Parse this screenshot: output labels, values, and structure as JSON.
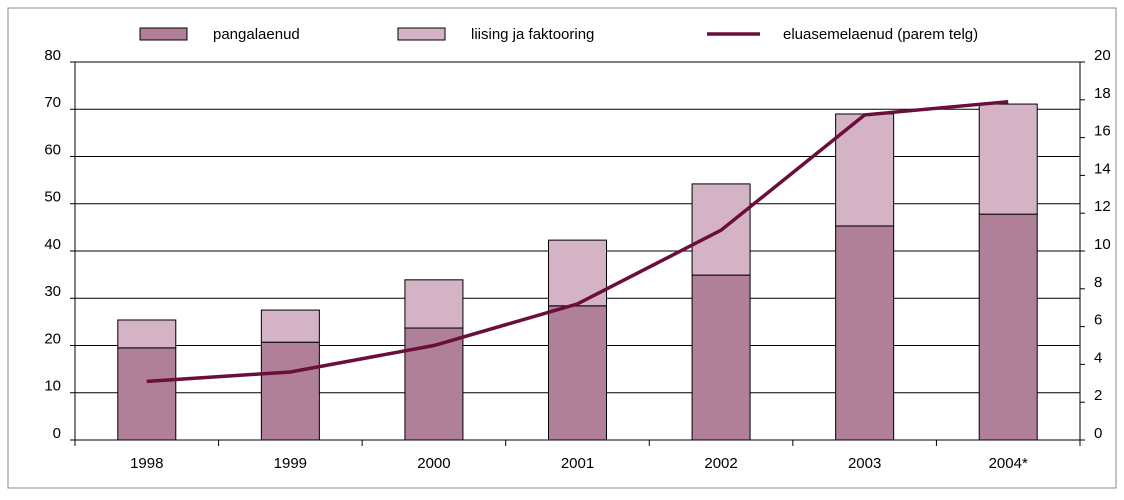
{
  "chart_data": {
    "type": "bar-line",
    "categories": [
      "1998",
      "1999",
      "2000",
      "2001",
      "2002",
      "2003",
      "2004*"
    ],
    "series": [
      {
        "name": "pangalaenud",
        "color": "#b08098",
        "kind": "bar",
        "values": [
          19.5,
          20.7,
          23.7,
          28.4,
          34.9,
          45.3,
          47.8
        ]
      },
      {
        "name": "liising ja faktooring",
        "color": "#d3b3c4",
        "kind": "bar",
        "values": [
          5.9,
          6.8,
          10.2,
          13.9,
          19.3,
          23.7,
          23.3
        ]
      },
      {
        "name": "eluasemelaenud (parem telg)",
        "color": "#6a0f3c",
        "kind": "line",
        "axis": "y2",
        "values": [
          3.1,
          3.6,
          5.0,
          7.2,
          11.1,
          17.2,
          17.9
        ]
      }
    ],
    "ylim": [
      0,
      80
    ],
    "yticks": [
      0,
      10,
      20,
      30,
      40,
      50,
      60,
      70,
      80
    ],
    "y2lim": [
      0,
      20
    ],
    "y2ticks": [
      0,
      2,
      4,
      6,
      8,
      10,
      12,
      14,
      16,
      18,
      20
    ],
    "grid": true,
    "legend": "top"
  }
}
